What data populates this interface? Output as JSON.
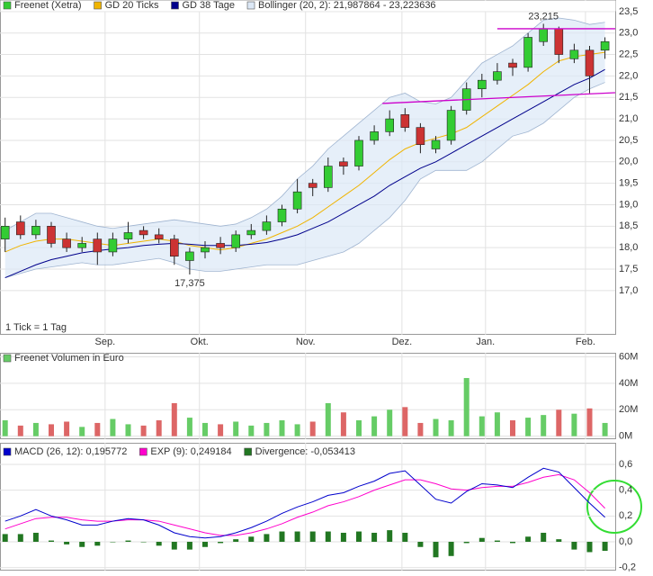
{
  "chart_data": [
    {
      "type": "candlestick",
      "x": [
        1,
        4,
        7,
        10,
        13,
        16,
        19,
        22,
        25,
        28,
        31,
        34,
        37,
        40,
        43,
        46,
        49,
        52,
        55,
        58,
        61,
        64,
        67,
        70,
        73,
        76,
        79,
        82,
        85,
        88,
        91,
        94,
        97,
        100,
        103,
        106,
        109,
        112,
        115,
        118
      ],
      "series": [
        {
          "name": "Freenet (Xetra)",
          "color": "#33cc33",
          "open": [
            18.2,
            18.6,
            18.3,
            18.5,
            18.2,
            18.0,
            18.2,
            17.9,
            18.2,
            18.4,
            18.3,
            18.2,
            17.7,
            17.9,
            18.1,
            18.0,
            18.3,
            18.4,
            18.6,
            18.9,
            19.5,
            19.4,
            20.0,
            19.9,
            20.5,
            20.7,
            21.1,
            20.8,
            20.3,
            20.5,
            21.2,
            21.7,
            21.9,
            22.3,
            22.2,
            22.8,
            23.1,
            22.4,
            22.6,
            22.6
          ],
          "high": [
            18.7,
            18.75,
            18.65,
            18.6,
            18.35,
            18.25,
            18.35,
            18.35,
            18.6,
            18.5,
            18.45,
            18.3,
            18.0,
            18.15,
            18.25,
            18.4,
            18.55,
            18.75,
            19.0,
            19.6,
            19.6,
            20.1,
            20.1,
            20.6,
            20.85,
            21.2,
            21.25,
            20.9,
            20.6,
            21.3,
            21.85,
            22.05,
            22.3,
            22.4,
            23.0,
            23.215,
            23.15,
            22.75,
            22.7,
            22.9
          ],
          "low": [
            17.9,
            18.2,
            18.2,
            18.0,
            17.9,
            17.9,
            17.6,
            17.8,
            18.1,
            18.2,
            18.1,
            17.6,
            17.375,
            17.75,
            17.85,
            17.9,
            18.2,
            18.3,
            18.5,
            18.8,
            19.2,
            19.3,
            19.7,
            19.8,
            20.4,
            20.6,
            20.7,
            20.2,
            20.2,
            20.4,
            21.1,
            21.5,
            21.8,
            22.0,
            22.1,
            22.7,
            22.3,
            22.3,
            21.6,
            22.4
          ],
          "close": [
            18.5,
            18.3,
            18.5,
            18.1,
            18.0,
            18.1,
            17.9,
            18.2,
            18.35,
            18.3,
            18.2,
            17.8,
            17.9,
            18.0,
            18.0,
            18.3,
            18.4,
            18.6,
            18.9,
            19.3,
            19.4,
            19.9,
            19.9,
            20.5,
            20.7,
            21.0,
            20.8,
            20.4,
            20.5,
            21.2,
            21.7,
            21.9,
            22.1,
            22.2,
            22.9,
            23.1,
            22.5,
            22.6,
            22.0,
            22.8
          ]
        },
        {
          "name": "GD 20 Ticks",
          "color": "#f0b400",
          "values": [
            17.9,
            18.05,
            18.15,
            18.2,
            18.2,
            18.15,
            18.1,
            18.05,
            18.1,
            18.15,
            18.2,
            18.15,
            18.05,
            18.0,
            17.95,
            18.0,
            18.1,
            18.2,
            18.35,
            18.5,
            18.7,
            18.95,
            19.2,
            19.45,
            19.75,
            20.05,
            20.3,
            20.45,
            20.55,
            20.65,
            20.8,
            21.05,
            21.3,
            21.55,
            21.8,
            22.1,
            22.35,
            22.45,
            22.5,
            22.55
          ]
        },
        {
          "name": "GD 38 Tage",
          "color": "#00008b",
          "values": [
            17.3,
            17.45,
            17.6,
            17.72,
            17.8,
            17.88,
            17.93,
            17.97,
            18.0,
            18.05,
            18.08,
            18.1,
            18.08,
            18.05,
            18.05,
            18.05,
            18.08,
            18.12,
            18.2,
            18.3,
            18.45,
            18.6,
            18.8,
            19.0,
            19.2,
            19.45,
            19.65,
            19.85,
            20.0,
            20.2,
            20.4,
            20.6,
            20.8,
            21.0,
            21.2,
            21.4,
            21.6,
            21.8,
            21.95,
            22.15
          ]
        },
        {
          "name": "Bollinger (20, 2): 21,987864 - 23,223636",
          "color": "#dce8f6",
          "upper": [
            18.4,
            18.6,
            18.8,
            18.8,
            18.7,
            18.6,
            18.5,
            18.45,
            18.5,
            18.55,
            18.6,
            18.65,
            18.6,
            18.55,
            18.5,
            18.55,
            18.7,
            18.9,
            19.2,
            19.6,
            19.9,
            20.3,
            20.6,
            20.9,
            21.2,
            21.5,
            21.6,
            21.4,
            21.35,
            21.5,
            21.9,
            22.3,
            22.5,
            22.7,
            23.0,
            23.3,
            23.35,
            23.3,
            23.2,
            23.25
          ],
          "lower": [
            17.3,
            17.4,
            17.5,
            17.55,
            17.6,
            17.65,
            17.6,
            17.6,
            17.65,
            17.7,
            17.75,
            17.65,
            17.5,
            17.45,
            17.45,
            17.5,
            17.55,
            17.6,
            17.6,
            17.6,
            17.7,
            17.8,
            17.9,
            18.1,
            18.4,
            18.7,
            19.1,
            19.6,
            19.8,
            19.8,
            19.8,
            20.0,
            20.3,
            20.6,
            20.7,
            20.9,
            21.2,
            21.5,
            21.7,
            21.85
          ]
        }
      ],
      "down_color": "#cc3333",
      "xlim": [
        0,
        120
      ],
      "xticks": [
        {
          "value": 20.5,
          "label": "Sep."
        },
        {
          "value": 38.9,
          "label": "Okt."
        },
        {
          "value": 59.6,
          "label": "Nov."
        },
        {
          "value": 78.4,
          "label": "Dez."
        },
        {
          "value": 94.7,
          "label": "Jan."
        },
        {
          "value": 114.2,
          "label": "Feb."
        }
      ],
      "ylim": [
        15.97,
        23.56
      ],
      "yticks": [
        {
          "value": 23.5,
          "label": "23,5"
        },
        {
          "value": 23.0,
          "label": "23,0"
        },
        {
          "value": 22.5,
          "label": "22,5"
        },
        {
          "value": 22.0,
          "label": "22,0"
        },
        {
          "value": 21.5,
          "label": "21,5"
        },
        {
          "value": 21.0,
          "label": "21,0"
        },
        {
          "value": 20.5,
          "label": "20,5"
        },
        {
          "value": 20.0,
          "label": "20,0"
        },
        {
          "value": 19.5,
          "label": "19,5"
        },
        {
          "value": 19.0,
          "label": "19,0"
        },
        {
          "value": 18.5,
          "label": "18,5"
        },
        {
          "value": 18.0,
          "label": "18,0"
        },
        {
          "value": 17.5,
          "label": "17,5"
        },
        {
          "value": 17.0,
          "label": "17,0"
        }
      ],
      "grid": true,
      "note": "1 Tick = 1 Tag",
      "annotations": [
        {
          "text": "23,215",
          "x": 106,
          "y": 23.215
        },
        {
          "text": "17,375",
          "x": 37,
          "y": 17.375
        }
      ],
      "trend_lines": {
        "color": "#cc00cc",
        "lines": [
          {
            "x": [
              97,
              120
            ],
            "y": [
              23.1,
              23.1
            ]
          },
          {
            "x": [
              74.6,
              120
            ],
            "y": [
              21.36,
              21.61
            ]
          }
        ]
      }
    },
    {
      "type": "bar",
      "title": "Freenet Volumen in Euro",
      "color": "#66cc66",
      "x": [
        1,
        4,
        7,
        10,
        13,
        16,
        19,
        22,
        25,
        28,
        31,
        34,
        37,
        40,
        43,
        46,
        49,
        52,
        55,
        58,
        61,
        64,
        67,
        70,
        73,
        76,
        79,
        82,
        85,
        88,
        91,
        94,
        97,
        100,
        103,
        106,
        109,
        112,
        115,
        118
      ],
      "values": [
        12,
        8,
        10,
        9,
        11,
        7,
        10,
        13,
        9,
        8,
        12,
        25,
        14,
        10,
        9,
        11,
        8,
        10,
        12,
        9,
        11,
        25,
        18,
        12,
        15,
        20,
        22,
        10,
        13,
        12,
        44,
        15,
        18,
        12,
        14,
        16,
        20,
        17,
        21,
        10
      ],
      "up_color": "#66cc66",
      "down_color": "#dd6666",
      "xlim": [
        0,
        120
      ],
      "ylim": [
        -2.3,
        63.1
      ],
      "yticks": [
        {
          "value": 60,
          "label": "60M"
        },
        {
          "value": 40,
          "label": "40M"
        },
        {
          "value": 20,
          "label": "20M"
        },
        {
          "value": 0,
          "label": "0M"
        }
      ]
    },
    {
      "type": "macd",
      "x": [
        1,
        4,
        7,
        10,
        13,
        16,
        19,
        22,
        25,
        28,
        31,
        34,
        37,
        40,
        43,
        46,
        49,
        52,
        55,
        58,
        61,
        64,
        67,
        70,
        73,
        76,
        79,
        82,
        85,
        88,
        91,
        94,
        97,
        100,
        103,
        106,
        109,
        112,
        115,
        118
      ],
      "series": [
        {
          "name": "MACD (26, 12): 0,195772",
          "color": "#0000cc",
          "values": [
            0.16,
            0.2,
            0.25,
            0.2,
            0.17,
            0.13,
            0.13,
            0.16,
            0.18,
            0.17,
            0.13,
            0.07,
            0.04,
            0.03,
            0.04,
            0.07,
            0.11,
            0.16,
            0.22,
            0.27,
            0.31,
            0.36,
            0.38,
            0.43,
            0.47,
            0.53,
            0.55,
            0.44,
            0.33,
            0.3,
            0.39,
            0.45,
            0.44,
            0.42,
            0.5,
            0.57,
            0.54,
            0.42,
            0.3,
            0.19
          ]
        },
        {
          "name": "EXP (9): 0,249184",
          "color": "#ff00cc",
          "values": [
            0.1,
            0.14,
            0.18,
            0.19,
            0.19,
            0.17,
            0.16,
            0.16,
            0.17,
            0.17,
            0.16,
            0.13,
            0.1,
            0.07,
            0.05,
            0.05,
            0.07,
            0.1,
            0.14,
            0.19,
            0.23,
            0.28,
            0.31,
            0.35,
            0.4,
            0.44,
            0.48,
            0.48,
            0.45,
            0.41,
            0.4,
            0.42,
            0.43,
            0.43,
            0.46,
            0.5,
            0.52,
            0.48,
            0.38,
            0.26
          ]
        },
        {
          "name": "Divergence: -0,053413",
          "color": "#227722",
          "values": [
            0.06,
            0.06,
            0.07,
            0.01,
            -0.02,
            -0.04,
            -0.03,
            0,
            0.01,
            0,
            -0.03,
            -0.06,
            -0.06,
            -0.04,
            -0.01,
            0.02,
            0.04,
            0.06,
            0.08,
            0.08,
            0.08,
            0.08,
            0.07,
            0.08,
            0.07,
            0.09,
            0.07,
            -0.04,
            -0.12,
            -0.11,
            -0.01,
            0.03,
            0.01,
            -0.01,
            0.04,
            0.07,
            0.02,
            -0.06,
            -0.08,
            -0.07
          ]
        }
      ],
      "xlim": [
        0,
        120
      ],
      "ylim": [
        -0.223,
        0.767
      ],
      "yticks": [
        {
          "value": 0.6,
          "label": "0,6"
        },
        {
          "value": 0.4,
          "label": "0,4"
        },
        {
          "value": 0.2,
          "label": "0,2"
        },
        {
          "value": 0.0,
          "label": "0,0"
        },
        {
          "value": -0.2,
          "label": "-0,2"
        }
      ]
    }
  ]
}
